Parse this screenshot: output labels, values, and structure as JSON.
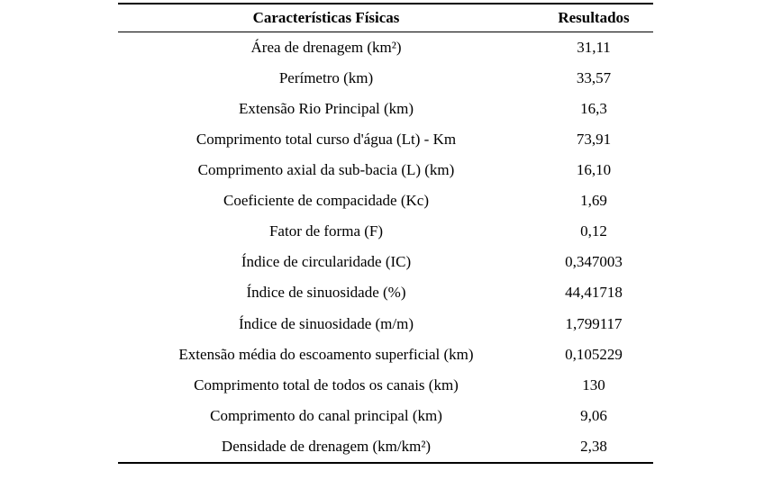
{
  "page": {
    "background": "#ffffff",
    "text_color": "#000000",
    "rule_color": "#000000"
  },
  "table": {
    "headers": {
      "characteristic": "Características Físicas",
      "result": "Resultados"
    },
    "rows": [
      {
        "label": "Área de drenagem (km²)",
        "value": "31,11"
      },
      {
        "label": "Perímetro (km)",
        "value": "33,57"
      },
      {
        "label": "Extensão Rio Principal (km)",
        "value": "16,3"
      },
      {
        "label": "Comprimento total curso d'água (Lt) - Km",
        "value": "73,91"
      },
      {
        "label": "Comprimento axial da sub-bacia (L) (km)",
        "value": "16,10"
      },
      {
        "label": "Coeficiente de compacidade (Kc)",
        "value": "1,69"
      },
      {
        "label": "Fator de forma (F)",
        "value": "0,12"
      },
      {
        "label": "Índice de circularidade (IC)",
        "value": "0,347003"
      },
      {
        "label": "Índice de sinuosidade (%)",
        "value": "44,41718"
      },
      {
        "label": "Índice de sinuosidade (m/m)",
        "value": "1,799117"
      },
      {
        "label": "Extensão média do escoamento superficial (km)",
        "value": "0,105229"
      },
      {
        "label": "Comprimento total de todos os canais (km)",
        "value": "130"
      },
      {
        "label": "Comprimento do canal principal (km)",
        "value": "9,06"
      },
      {
        "label": "Densidade de drenagem (km/km²)",
        "value": "2,38"
      }
    ]
  }
}
